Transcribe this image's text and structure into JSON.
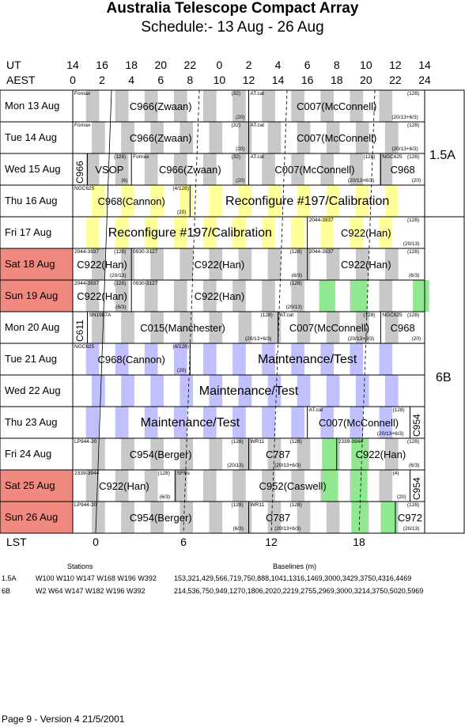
{
  "header": {
    "title": "Australia Telescope Compact Array",
    "subtitle": "Schedule:- 13 Aug - 26 Aug"
  },
  "axes": {
    "ut_label": "UT",
    "aest_label": "AEST",
    "lst_label": "LST",
    "ut_ticks": [
      "14",
      "16",
      "18",
      "20",
      "22",
      "0",
      "2",
      "4",
      "6",
      "8",
      "10",
      "12",
      "14"
    ],
    "aest_ticks": [
      "0",
      "2",
      "4",
      "6",
      "8",
      "10",
      "12",
      "14",
      "16",
      "18",
      "20",
      "22",
      "24"
    ],
    "lst_ticks": [
      "0",
      "6",
      "12",
      "18"
    ]
  },
  "colors": {
    "weekend": "#f08a80",
    "grey_band": "#c8c8c8",
    "yellow": "#ffff99",
    "lavender": "#c0c0ff",
    "green": "#90e890"
  },
  "days": [
    {
      "label": "Mon  13 Aug",
      "weekend": false
    },
    {
      "label": "Tue  14 Aug",
      "weekend": false
    },
    {
      "label": "Wed  15 Aug",
      "weekend": false
    },
    {
      "label": "Thu  16 Aug",
      "weekend": false
    },
    {
      "label": "Fri   17 Aug",
      "weekend": false
    },
    {
      "label": "Sat   18 Aug",
      "weekend": true
    },
    {
      "label": "Sun  19 Aug",
      "weekend": true
    },
    {
      "label": "Mon  20 Aug",
      "weekend": false
    },
    {
      "label": "Tue  21 Aug",
      "weekend": false
    },
    {
      "label": "Wed  22 Aug",
      "weekend": false
    },
    {
      "label": "Thu  23 Aug",
      "weekend": false
    },
    {
      "label": "Fri   24 Aug",
      "weekend": false
    },
    {
      "label": "Sat   25 Aug",
      "weekend": true
    },
    {
      "label": "Sun  26 Aug",
      "weekend": true
    }
  ],
  "configs": [
    {
      "label": "1.5A"
    },
    {
      "label": "6B"
    }
  ],
  "blocks": [
    {
      "row": 0,
      "start": 0,
      "end": 12,
      "main": "C966(Zwaan)",
      "src": "Fornax",
      "obs": "(32)",
      "extra": "(20)"
    },
    {
      "row": 0,
      "start": 12,
      "end": 24,
      "main": "C007(McConnell)",
      "src": "AT.cat",
      "obs": "(128)",
      "extra": "(20/13+6/3)"
    },
    {
      "row": 1,
      "start": 0,
      "end": 12,
      "main": "C966(Zwaan)",
      "src": "Fornax",
      "obs": "(32)",
      "extra": "(20)"
    },
    {
      "row": 1,
      "start": 12,
      "end": 24,
      "main": "C007(McConnell)",
      "src": "AT.cat",
      "obs": "(128)",
      "extra": "(20/13+6/3)"
    },
    {
      "row": 2,
      "start": 0,
      "end": 1,
      "main": "C966",
      "src": "",
      "obs": "",
      "extra": ""
    },
    {
      "row": 2,
      "start": 1,
      "end": 4,
      "main": "VSOP",
      "src": "",
      "obs": "(128)",
      "extra": "(6)"
    },
    {
      "row": 2,
      "start": 4,
      "end": 12,
      "main": "C966(Zwaan)",
      "src": "Fornax",
      "obs": "(32)",
      "extra": "(20)"
    },
    {
      "row": 2,
      "start": 12,
      "end": 21,
      "main": "C007(McConnell)",
      "src": "AT.cat",
      "obs": "(128)",
      "extra": "(20/13+6/3)"
    },
    {
      "row": 2,
      "start": 21,
      "end": 24,
      "main": "C968",
      "src": "NGC625",
      "obs": "(128)",
      "extra": "(20)"
    },
    {
      "row": 3,
      "start": 0,
      "end": 8,
      "main": "C968(Cannon)",
      "src": "NGC625",
      "obs": "(4/128)",
      "extra": "(20)"
    },
    {
      "row": 3,
      "start": 8,
      "end": 24,
      "main": "Reconfigure #197/Calibration",
      "src": "",
      "obs": "",
      "extra": ""
    },
    {
      "row": 4,
      "start": 0,
      "end": 16,
      "main": "Reconfigure #197/Calibration",
      "src": "",
      "obs": "",
      "extra": ""
    },
    {
      "row": 4,
      "start": 16,
      "end": 24,
      "main": "C922(Han)",
      "src": "2044-3937",
      "obs": "(128)",
      "extra": "(20/13)"
    },
    {
      "row": 5,
      "start": 0,
      "end": 4,
      "main": "C922(Han)",
      "src": "2044-3937",
      "obs": "(128)",
      "extra": "(20/13)"
    },
    {
      "row": 5,
      "start": 4,
      "end": 16,
      "main": "C922(Han)",
      "src": "0930-3127",
      "obs": "(128)",
      "extra": "(6/3)"
    },
    {
      "row": 5,
      "start": 16,
      "end": 24,
      "main": "C922(Han)",
      "src": "2044-3937",
      "obs": "(128)",
      "extra": "(6/3)"
    },
    {
      "row": 6,
      "start": 0,
      "end": 4,
      "main": "C922(Han)",
      "src": "2044-3937",
      "obs": "(128)",
      "extra": "(6/3)"
    },
    {
      "row": 6,
      "start": 4,
      "end": 16,
      "main": "C922(Han)",
      "src": "0930-3127",
      "obs": "(128)",
      "extra": "(20/13)"
    },
    {
      "row": 7,
      "start": 0,
      "end": 1,
      "main": "C611",
      "src": "",
      "obs": "",
      "extra": ""
    },
    {
      "row": 7,
      "start": 1,
      "end": 14,
      "main": "C015(Manchester)",
      "src": "SN1987A",
      "obs": "(128)",
      "extra": "(20/13+6/3)"
    },
    {
      "row": 7,
      "start": 14,
      "end": 21,
      "main": "C007(McConnell)",
      "src": "AT.cat",
      "obs": "(128)",
      "extra": "(20/13+6/3)"
    },
    {
      "row": 7,
      "start": 21,
      "end": 24,
      "main": "C968",
      "src": "NGC625",
      "obs": "(128)",
      "extra": "(20)"
    },
    {
      "row": 8,
      "start": 0,
      "end": 8,
      "main": "C968(Cannon)",
      "src": "NGC625",
      "obs": "(4/128)",
      "extra": "(20)"
    },
    {
      "row": 8,
      "start": 8,
      "end": 24,
      "main": "Maintenance/Test",
      "src": "",
      "obs": "",
      "extra": ""
    },
    {
      "row": 9,
      "start": 0,
      "end": 24,
      "main": "Maintenance/Test",
      "src": "",
      "obs": "",
      "extra": ""
    },
    {
      "row": 10,
      "start": 0,
      "end": 16,
      "main": "Maintenance/Test",
      "src": "",
      "obs": "",
      "extra": ""
    },
    {
      "row": 10,
      "start": 16,
      "end": 23,
      "main": "C007(McConnell)",
      "src": "AT.cat",
      "obs": "(128)",
      "extra": "(20/13+6/3)"
    },
    {
      "row": 10,
      "start": 23,
      "end": 24,
      "main": "C954",
      "src": "",
      "obs": "",
      "extra": ""
    },
    {
      "row": 11,
      "start": 0,
      "end": 12,
      "main": "C954(Berger)",
      "src": "LP944-20",
      "obs": "(128)",
      "extra": "(20/13)"
    },
    {
      "row": 11,
      "start": 12,
      "end": 16,
      "main": "C787",
      "src": "WR11",
      "obs": "(128)",
      "extra": "(20/13+6/3)"
    },
    {
      "row": 11,
      "start": 18,
      "end": 24,
      "main": "C922(Han)",
      "src": "2339-3944",
      "obs": "(128)",
      "extra": "(6/3)"
    },
    {
      "row": 12,
      "start": 0,
      "end": 7,
      "main": "C922(Han)",
      "src": "2339-3944",
      "obs": "(128)",
      "extra": "(6/3)"
    },
    {
      "row": 12,
      "start": 7,
      "end": 23,
      "main": "C952(Caswell)",
      "src": "SFRs",
      "obs": "(4)",
      "extra": "(20)"
    },
    {
      "row": 12,
      "start": 23,
      "end": 24,
      "main": "C954",
      "src": "",
      "obs": "",
      "extra": ""
    },
    {
      "row": 13,
      "start": 0,
      "end": 12,
      "main": "C954(Berger)",
      "src": "LP944-20",
      "obs": "(128)",
      "extra": "(6/3)"
    },
    {
      "row": 13,
      "start": 12,
      "end": 16,
      "main": "C787",
      "src": "WR11",
      "obs": "(128)",
      "extra": "(20/13+6/3)"
    },
    {
      "row": 13,
      "start": 22,
      "end": 24,
      "main": "C972",
      "src": "",
      "obs": "(128)",
      "extra": "(20/13)"
    }
  ],
  "legend": {
    "stations_header": "Stations",
    "baselines_header": "Baselines (m)",
    "rows": [
      {
        "config": "1.5A",
        "stations": "W100 W110 W147 W168 W196 W392",
        "baselines": "153,321,429,566,719,750,888,1041,1316,1469,3000,3429,3750,4316,4469"
      },
      {
        "config": "6B",
        "stations": "W2 W64 W147 W182 W196 W392",
        "baselines": "214,536,750,949,1270,1806,2020,2219,2755,2969,3000,3214,3750,5020,5969"
      }
    ]
  },
  "footer": "Page 9 - Version 4  21/5/2001"
}
